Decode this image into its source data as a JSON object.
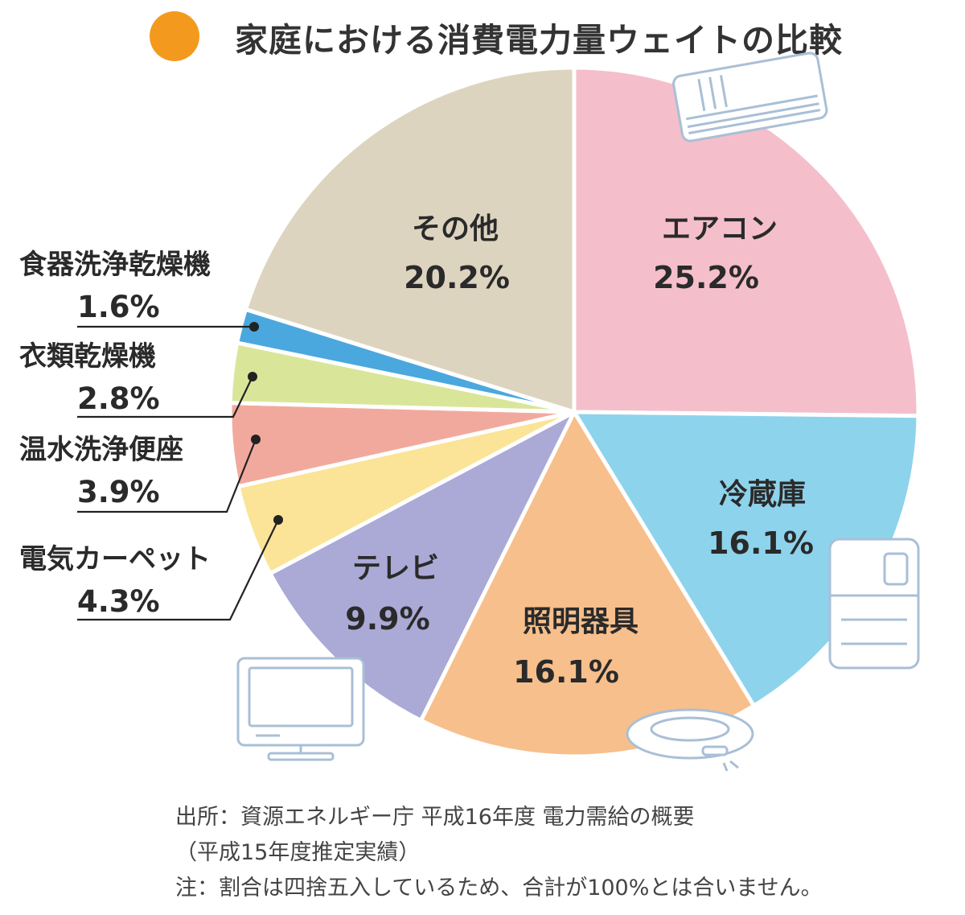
{
  "title": "家庭における消費電力量ウェイトの比較",
  "colors": {
    "title_dot": "#f39a1e",
    "leader_line": "#222222",
    "icon_stroke": "#a9bfd6"
  },
  "icons": [
    "air-conditioner-icon",
    "refrigerator-icon",
    "ceiling-light-icon",
    "television-icon"
  ],
  "chart_data": {
    "type": "pie",
    "start_angle_deg": 0,
    "direction": "clockwise",
    "slices": [
      {
        "label": "エアコン",
        "value": 25.2,
        "display": "25.2%",
        "color": "#f4bfcb",
        "label_position": "inside"
      },
      {
        "label": "冷蔵庫",
        "value": 16.1,
        "display": "16.1%",
        "color": "#8ed3ec",
        "label_position": "inside"
      },
      {
        "label": "照明器具",
        "value": 16.1,
        "display": "16.1%",
        "color": "#f7bf8c",
        "label_position": "inside"
      },
      {
        "label": "テレビ",
        "value": 9.9,
        "display": "9.9%",
        "color": "#aba9d6",
        "label_position": "inside"
      },
      {
        "label": "電気カーペット",
        "value": 4.3,
        "display": "4.3%",
        "color": "#fbe497",
        "label_position": "outside"
      },
      {
        "label": "温水洗浄便座",
        "value": 3.9,
        "display": "3.9%",
        "color": "#f2a99d",
        "label_position": "outside"
      },
      {
        "label": "衣類乾燥機",
        "value": 2.8,
        "display": "2.8%",
        "color": "#d9e69a",
        "label_position": "outside"
      },
      {
        "label": "食器洗浄乾燥機",
        "value": 1.6,
        "display": "1.6%",
        "color": "#4aa8de",
        "label_position": "outside"
      },
      {
        "label": "その他",
        "value": 20.2,
        "display": "20.2%",
        "color": "#ddd4c0",
        "label_position": "inside"
      }
    ]
  },
  "source": {
    "line1": "出所：資源エネルギー庁 平成16年度 電力需給の概要",
    "line2": "（平成15年度推定実績）",
    "line3": "注：割合は四捨五入しているため、合計が100%とは合いません。"
  }
}
